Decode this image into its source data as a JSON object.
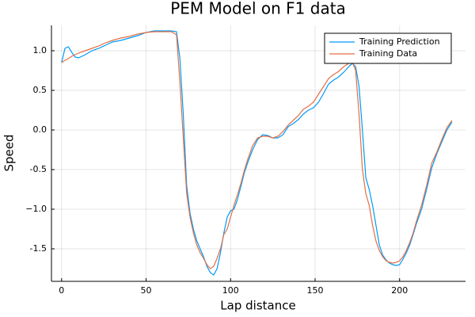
{
  "chart_data": {
    "type": "line",
    "title": "PEM Model on F1 data",
    "x_label": "Lap distance",
    "y_label": "Speed",
    "x": [
      0,
      2,
      4,
      6,
      8,
      10,
      14,
      18,
      22,
      26,
      30,
      35,
      40,
      45,
      50,
      55,
      60,
      65,
      68,
      70,
      72,
      74,
      76,
      78,
      80,
      82,
      84,
      86,
      88,
      90,
      92,
      94,
      96,
      98,
      100,
      102,
      104,
      106,
      108,
      110,
      113,
      116,
      119,
      122,
      125,
      128,
      131,
      134,
      137,
      140,
      143,
      146,
      149,
      152,
      155,
      158,
      161,
      164,
      167,
      170,
      172,
      174,
      176,
      178,
      180,
      182,
      184,
      186,
      188,
      190,
      192,
      194,
      196,
      198,
      200,
      202,
      204,
      206,
      208,
      210,
      213,
      216,
      219,
      222,
      225,
      228,
      231
    ],
    "series": [
      {
        "name": "Training Prediction",
        "color": "#009af9",
        "values": [
          0.85,
          1.03,
          1.05,
          0.98,
          0.92,
          0.91,
          0.95,
          1.0,
          1.03,
          1.07,
          1.11,
          1.13,
          1.16,
          1.19,
          1.23,
          1.25,
          1.25,
          1.25,
          1.24,
          0.9,
          0.2,
          -0.7,
          -1.05,
          -1.25,
          -1.4,
          -1.5,
          -1.6,
          -1.72,
          -1.8,
          -1.83,
          -1.75,
          -1.55,
          -1.3,
          -1.1,
          -1.02,
          -1.0,
          -0.88,
          -0.72,
          -0.55,
          -0.42,
          -0.25,
          -0.12,
          -0.06,
          -0.07,
          -0.1,
          -0.1,
          -0.06,
          0.04,
          0.08,
          0.13,
          0.2,
          0.25,
          0.28,
          0.35,
          0.46,
          0.58,
          0.63,
          0.67,
          0.73,
          0.8,
          0.84,
          0.8,
          0.55,
          0.0,
          -0.6,
          -0.75,
          -0.95,
          -1.2,
          -1.45,
          -1.58,
          -1.64,
          -1.68,
          -1.7,
          -1.71,
          -1.7,
          -1.63,
          -1.55,
          -1.45,
          -1.32,
          -1.18,
          -1.0,
          -0.75,
          -0.48,
          -0.3,
          -0.15,
          0.0,
          0.1
        ]
      },
      {
        "name": "Training Data",
        "color": "#e26f46",
        "values": [
          0.85,
          0.88,
          0.9,
          0.93,
          0.95,
          0.97,
          1.0,
          1.03,
          1.06,
          1.1,
          1.13,
          1.16,
          1.18,
          1.21,
          1.23,
          1.24,
          1.24,
          1.24,
          1.2,
          0.6,
          -0.1,
          -0.8,
          -1.1,
          -1.3,
          -1.45,
          -1.55,
          -1.62,
          -1.7,
          -1.75,
          -1.72,
          -1.62,
          -1.5,
          -1.32,
          -1.25,
          -1.1,
          -0.95,
          -0.82,
          -0.68,
          -0.52,
          -0.38,
          -0.2,
          -0.1,
          -0.08,
          -0.08,
          -0.1,
          -0.08,
          -0.02,
          0.06,
          0.12,
          0.18,
          0.26,
          0.3,
          0.35,
          0.45,
          0.55,
          0.65,
          0.7,
          0.74,
          0.8,
          0.84,
          0.86,
          0.75,
          0.2,
          -0.5,
          -0.8,
          -0.95,
          -1.2,
          -1.4,
          -1.52,
          -1.6,
          -1.65,
          -1.67,
          -1.68,
          -1.67,
          -1.65,
          -1.6,
          -1.52,
          -1.42,
          -1.3,
          -1.15,
          -0.95,
          -0.7,
          -0.42,
          -0.28,
          -0.12,
          0.03,
          0.12
        ]
      }
    ],
    "xlim": [
      -6,
      239
    ],
    "ylim": [
      -1.91,
      1.32
    ],
    "xticks": [
      0,
      50,
      100,
      150,
      200
    ],
    "yticks": [
      -1.5,
      {
        "value": -1.0,
        "label": "−1.0"
      },
      -0.5,
      {
        "value": 0.0,
        "label": "0.0"
      },
      0.5,
      {
        "value": 1.0,
        "label": "1.0"
      }
    ],
    "grid": true,
    "legend": "top-right"
  }
}
